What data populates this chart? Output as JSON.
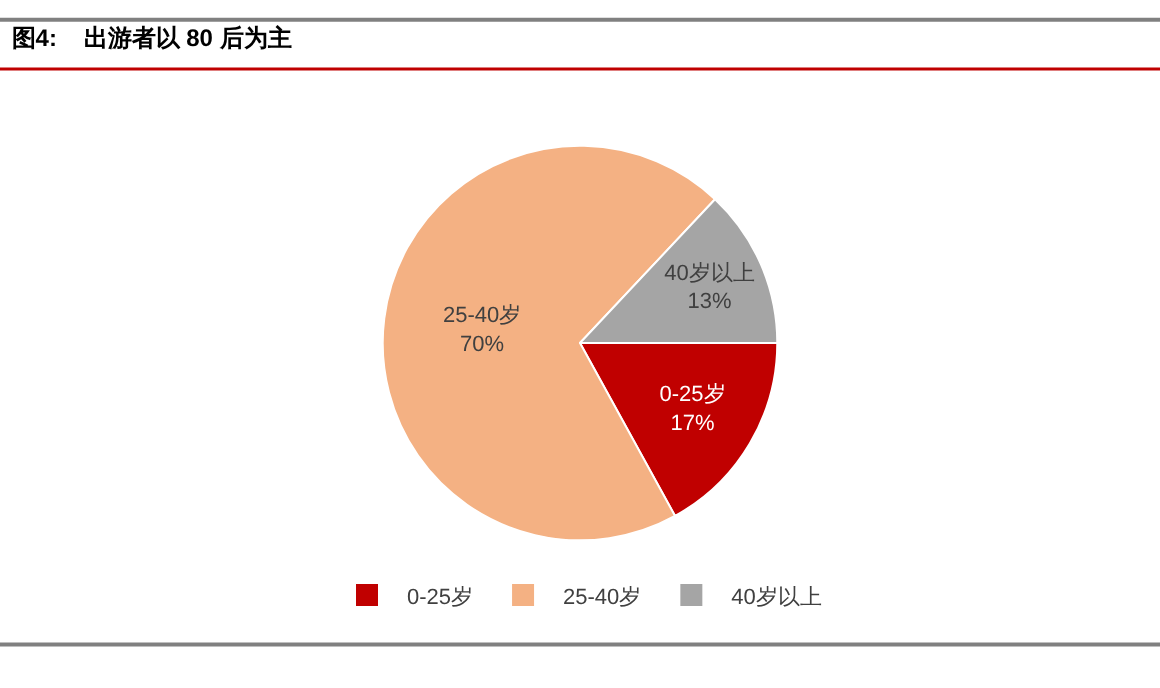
{
  "chart_data": {
    "type": "pie",
    "title": "图4:    出游者以 80 后为主",
    "categories": [
      "0-25岁",
      "25-40岁",
      "40岁以上"
    ],
    "values": [
      17,
      70,
      13
    ],
    "value_labels": [
      "17%",
      "70%",
      "13%"
    ],
    "colors": [
      "#c00000",
      "#f4b183",
      "#a5a5a5"
    ],
    "legend": "bottom"
  }
}
